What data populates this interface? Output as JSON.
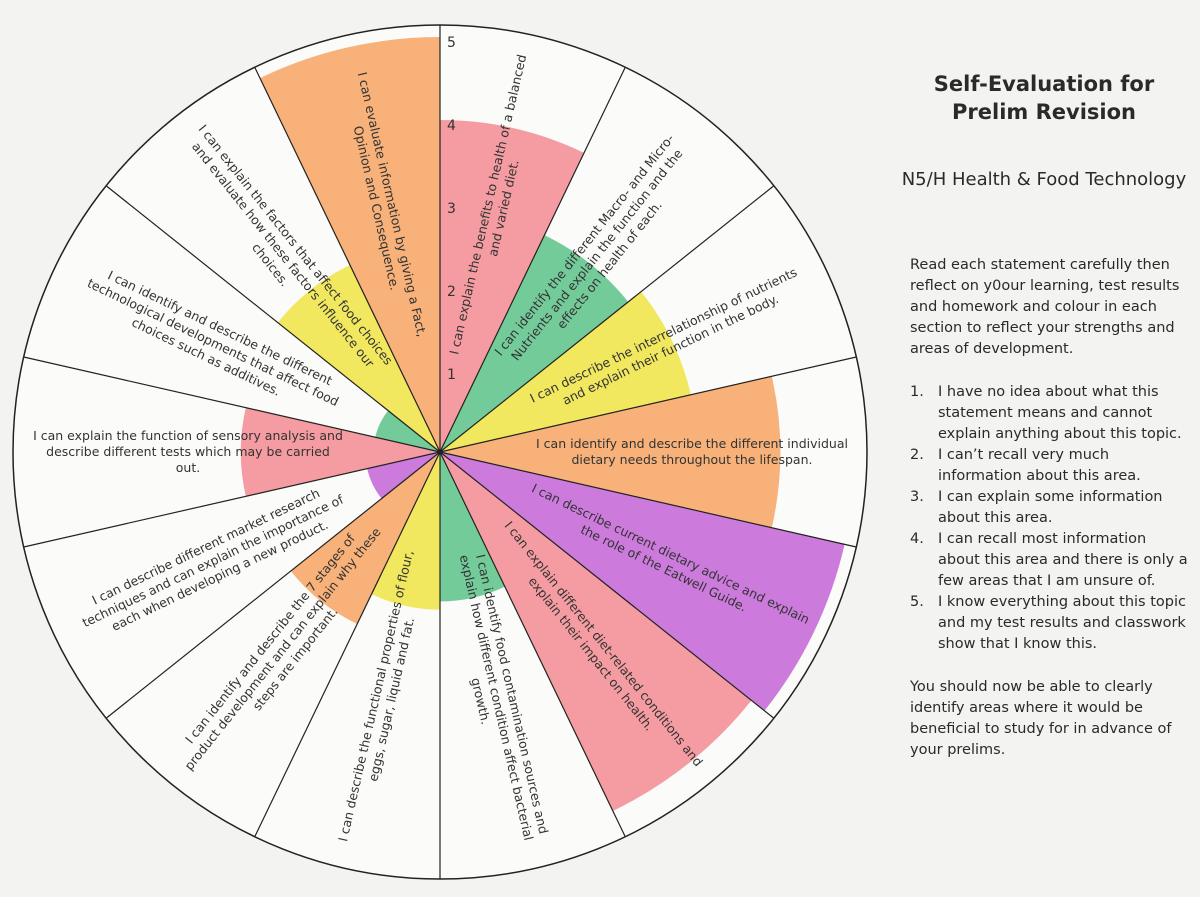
{
  "wheel": {
    "scale": [
      1,
      2,
      3,
      4,
      5
    ],
    "segments": [
      {
        "statement": "I can explain the benefits to health of a balanced and varied diet.",
        "rating": 4,
        "color": "#f28b93"
      },
      {
        "statement": "I can identify the different Macro- and Micro-Nutrients and explain the function and the effects on health of each.",
        "rating": 2.9,
        "color": "#5cc28a"
      },
      {
        "statement": "I can describe the interrelationship of nutrients and explain their function in the body.",
        "rating": 3.1,
        "color": "#efe445"
      },
      {
        "statement": "I can identify and describe the different individual dietary needs throughout the lifespan.",
        "rating": 4.1,
        "color": "#f6a363"
      },
      {
        "statement": "I can describe current dietary advice and explain the role of the Eatwell Guide.",
        "rating": 5,
        "color": "#c364d8"
      },
      {
        "statement": "I can explain different diet-related conditions and explain their impact on health.",
        "rating": 4.8,
        "color": "#f28b93"
      },
      {
        "statement": "I can identify food contamination sources and explain how different condition affect bacterial growth.",
        "rating": 1.8,
        "color": "#5cc28a"
      },
      {
        "statement": "I can describe the functional properties of flour, eggs, sugar, liquid and fat.",
        "rating": 1.9,
        "color": "#efe445"
      },
      {
        "statement": "I can identify and describe the 7 stages of product development and can explain why these steps are important.",
        "rating": 2.3,
        "color": "#f6a363"
      },
      {
        "statement": "I can describe different market research techniques and can explain the importance of each when developing a new product.",
        "rating": 0.9,
        "color": "#c364d8"
      },
      {
        "statement": "I can explain the function of sensory analysis and describe different tests which may be carried out.",
        "rating": 2.4,
        "color": "#f28b93"
      },
      {
        "statement": "I can identify and describe the different technological developments that affect food choices such as additives.",
        "rating": 0.8,
        "color": "#5cc28a"
      },
      {
        "statement": "I can explain the factors that affect food choices and evaluate how these factors influence our choices.",
        "rating": 2.5,
        "color": "#efe445"
      },
      {
        "statement": "I can evaluate information by giving a Fact, Opinion and Consequence.",
        "rating": 5,
        "color": "#f6a363"
      }
    ]
  },
  "panel": {
    "title": "Self-Evaluation for Prelim Revision",
    "subtitle": "N5/H Health & Food Technology",
    "intro": "Read each statement carefully then reflect on y0our learning, test results and homework and colour in each section to reflect your strengths and areas of development.",
    "levels": [
      {
        "number": "1.",
        "text": "I have no idea about what this statement means and cannot explain anything about this topic."
      },
      {
        "number": "2.",
        "text": "I can’t recall very much information about this area."
      },
      {
        "number": "3.",
        "text": "I can explain some information about this area."
      },
      {
        "number": "4.",
        "text": "I can recall most information about this area and there is only a few areas that I am unsure of."
      },
      {
        "number": "5.",
        "text": "I know everything about this topic and my test results and classwork show that I know this."
      }
    ],
    "closing": "You should now be able to clearly identify areas where it would be beneficial to study for in advance of your prelims."
  }
}
